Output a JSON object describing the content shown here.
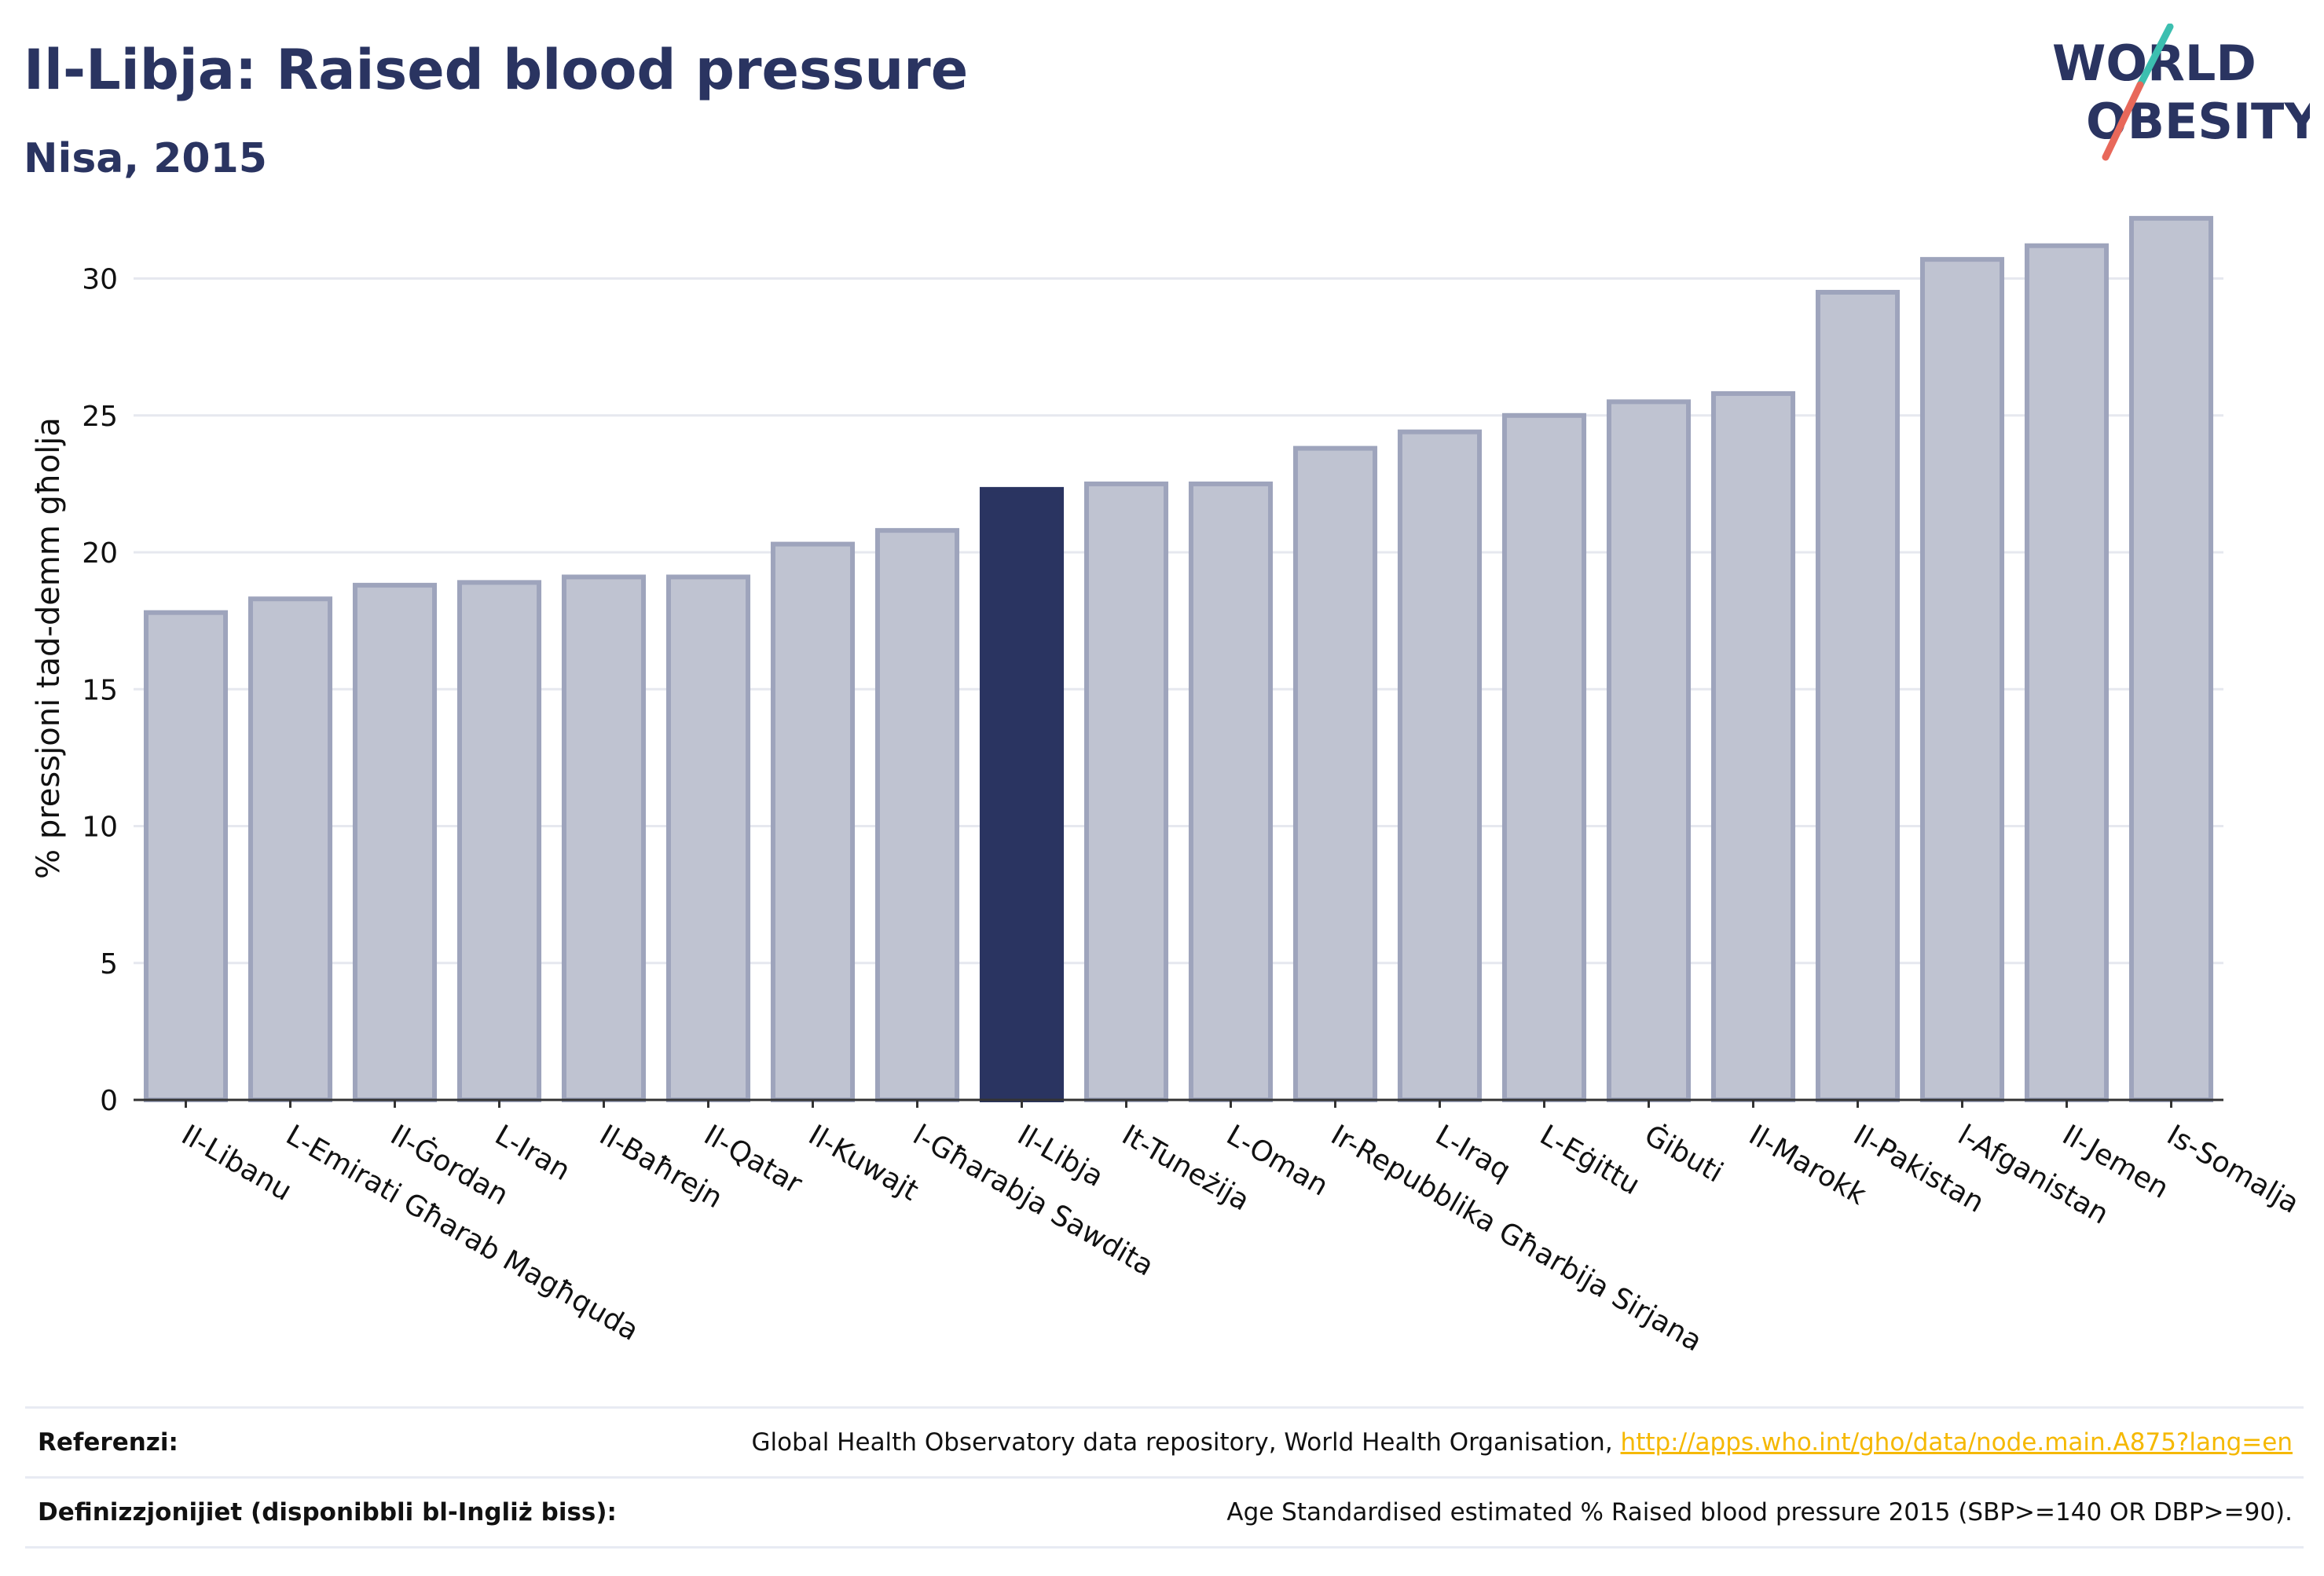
{
  "header": {
    "title": "Il-Libja: Raised blood pressure",
    "subtitle": "Nisa, 2015",
    "logo_line1": "WORLD",
    "logo_line2": "OBESITY"
  },
  "chart_data": {
    "type": "bar",
    "title": "Il-Libja: Raised blood pressure",
    "subtitle": "Nisa, 2015",
    "xlabel": "",
    "ylabel": "% pressjoni tad-demm għolja",
    "ylim": [
      0,
      33
    ],
    "yticks": [
      0,
      5,
      10,
      15,
      20,
      25,
      30
    ],
    "grid": true,
    "highlight": "Il-Libja",
    "colors": {
      "bar": "#bfc3d1",
      "bar_edge": "#9ea4bc",
      "highlight": "#2a3461",
      "grid": "#e6e8ef",
      "axis": "#333333"
    },
    "categories": [
      "Il-Libanu",
      "L-Emirati Għarab Magħquda",
      "Il-Ġordan",
      "L-Iran",
      "Il-Baħrejn",
      "Il-Qatar",
      "Il-Kuwajt",
      "l-Għarabja Sawdita",
      "Il-Libja",
      "It-Tuneżija",
      "L-Oman",
      "Ir-Repubblika Għarbija Sirjana",
      "L-Iraq",
      "L-Eġittu",
      "Ġibuti",
      "Il-Marokk",
      "Il-Pakistan",
      "l-Afganistan",
      "Il-Jemen",
      "Is-Somalja"
    ],
    "values": [
      17.8,
      18.3,
      18.8,
      18.9,
      19.1,
      19.1,
      20.3,
      20.8,
      22.3,
      22.5,
      22.5,
      23.8,
      24.4,
      25.0,
      25.5,
      25.8,
      29.5,
      30.7,
      31.2,
      32.2
    ]
  },
  "footer": {
    "references_label": "Referenzi:",
    "references_text": "Global Health Observatory data repository, World Health Organisation, ",
    "references_link": "http://apps.who.int/gho/data/node.main.A875?lang=en",
    "definitions_label": "Definizzjonijiet (disponibbli bl-Ingliż biss):",
    "definitions_text": "Age Standardised estimated % Raised blood pressure 2015 (SBP>=140 OR DBP>=90)."
  }
}
